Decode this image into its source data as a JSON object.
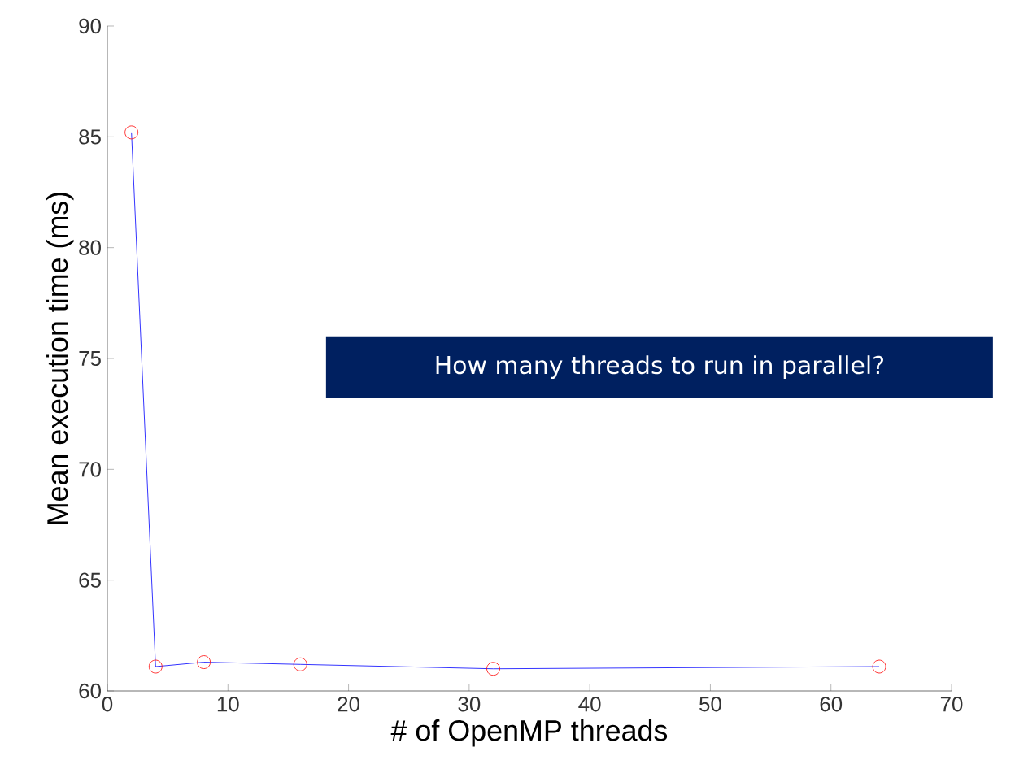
{
  "chart_data": {
    "type": "line",
    "xlabel": "# of OpenMP threads",
    "ylabel": "Mean execution time (ms)",
    "x": [
      2,
      4,
      8,
      16,
      32,
      64
    ],
    "series": [
      {
        "color": "#0000ff",
        "values": [
          85.2,
          61.1,
          61.3,
          61.2,
          61.0,
          61.1
        ]
      }
    ],
    "marker": "circle",
    "line_style": "solid",
    "grid": false,
    "xlim": [
      0,
      70
    ],
    "ylim": [
      60,
      90
    ],
    "xticks": [
      0,
      10,
      20,
      30,
      40,
      50,
      60,
      70
    ],
    "yticks": [
      60,
      65,
      70,
      75,
      80,
      85,
      90
    ],
    "annotations": [
      "How many threads to run in parallel?"
    ]
  }
}
